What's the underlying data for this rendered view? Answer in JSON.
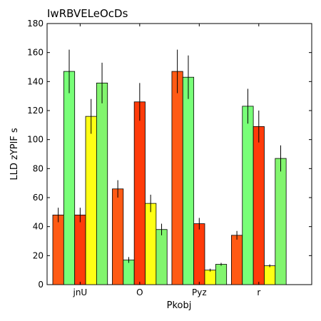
{
  "chart_data": {
    "type": "bar",
    "title": "IwRBVELeOcDs",
    "xlabel": "Pkobj",
    "ylabel": "LLD zYPlF s",
    "ylim": [
      0,
      180
    ],
    "yticks": [
      0,
      20,
      40,
      60,
      80,
      100,
      120,
      140,
      160,
      180
    ],
    "categories": [
      "jnU",
      "O",
      "Pyz",
      "r"
    ],
    "grid": false,
    "legend": "none",
    "series": [
      {
        "color": "#ff5a14",
        "values": [
          48,
          66,
          147,
          34
        ],
        "errors": [
          5,
          6,
          15,
          3
        ]
      },
      {
        "color": "#78ff78",
        "values": [
          147,
          17,
          143,
          123
        ],
        "errors": [
          15,
          2,
          15,
          12
        ]
      },
      {
        "color": "#ff3b0a",
        "values": [
          48,
          126,
          42,
          109
        ],
        "errors": [
          5,
          13,
          4,
          11
        ]
      },
      {
        "color": "#ffff14",
        "values": [
          116,
          56,
          10,
          13
        ],
        "errors": [
          12,
          6,
          1,
          1
        ]
      },
      {
        "color": "#82f56e",
        "values": [
          139,
          38,
          14,
          87
        ],
        "errors": [
          14,
          4,
          1,
          9
        ]
      }
    ]
  }
}
